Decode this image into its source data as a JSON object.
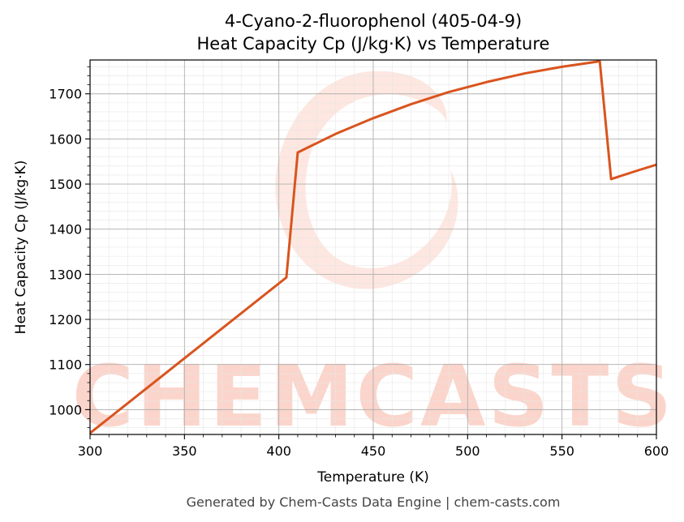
{
  "chart_data": {
    "type": "line",
    "title": "4-Cyano-2-fluorophenol (405-04-9)",
    "subtitle": "Heat Capacity Cp (J/kg·K) vs Temperature",
    "xlabel": "Temperature (K)",
    "ylabel": "Heat Capacity Cp (J/kg·K)",
    "xlim": [
      300,
      600
    ],
    "ylim": [
      945,
      1775
    ],
    "xticks": [
      300,
      350,
      400,
      450,
      500,
      550,
      600
    ],
    "yticks": [
      1000,
      1100,
      1200,
      1300,
      1400,
      1500,
      1600,
      1700
    ],
    "grid": true,
    "line_color": "#d9541e",
    "series": [
      {
        "x": [
          300,
          404,
          410,
          430,
          450,
          470,
          490,
          510,
          530,
          550,
          570,
          576,
          590,
          600
        ],
        "y": [
          948,
          1293,
          1570,
          1611,
          1646,
          1677,
          1704,
          1726,
          1745,
          1760,
          1772,
          1511,
          1530,
          1543
        ]
      }
    ]
  },
  "watermark": {
    "text": "CHEMCASTS",
    "color": "#fbd5cb"
  },
  "footer": "Generated by Chem-Casts Data Engine | chem-casts.com"
}
